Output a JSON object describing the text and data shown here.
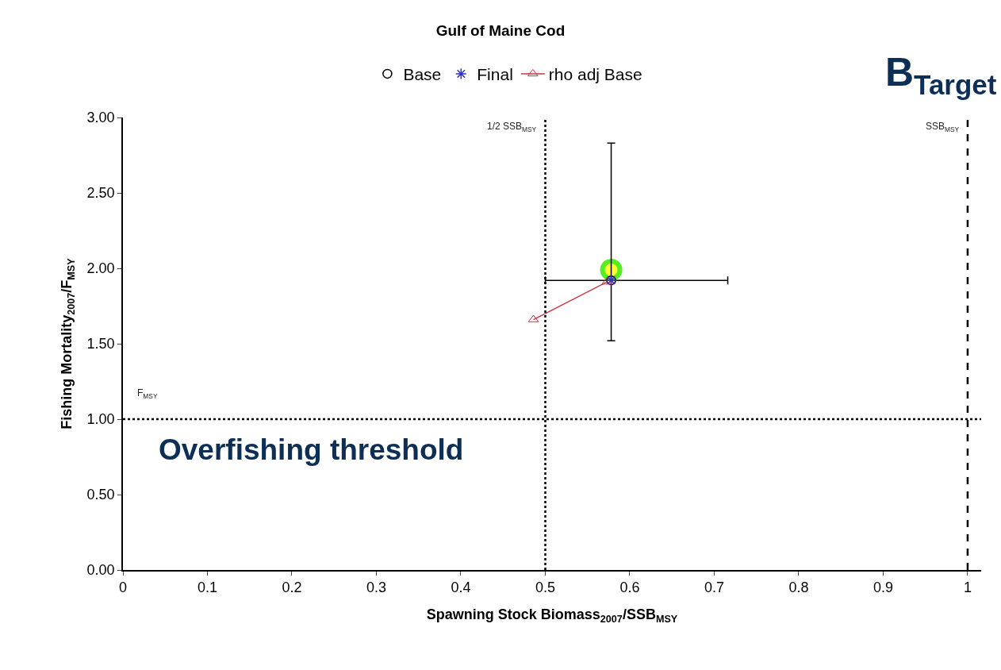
{
  "chart_data": {
    "type": "scatter",
    "title": "Gulf of Maine Cod",
    "xlabel": "Spawning Stock Biomass$_{2007}$/SSB$_{MSY}$",
    "ylabel": "Fishing Mortality$_{2007}$/F$_{MSY}$",
    "series": [
      {
        "name": "Base",
        "color": "#000000",
        "marker": "circle",
        "x": [
          0.578
        ],
        "values": [
          1.92
        ],
        "errors": [
          [
            1.52,
            2.83
          ]
        ],
        "xerrors": [
          [
            0.5,
            0.716
          ]
        ]
      },
      {
        "name": "Final",
        "color": "#3333cc",
        "marker": "cross",
        "x": [
          0.578
        ],
        "values": [
          1.92
        ]
      },
      {
        "name": "rho adj Base",
        "type": "line",
        "color": "#cc3344",
        "marker": "triangle",
        "line_style": "solid",
        "x": [
          0.573,
          0.486
        ],
        "values": [
          1.91,
          1.66
        ]
      },
      {
        "color": "#ffff33",
        "marker": "circle",
        "x": [
          0.578
        ],
        "values": [
          1.99
        ]
      }
    ],
    "xlim": [
      0,
      1.016
    ],
    "xticks": [
      0,
      0.1,
      0.2,
      0.3,
      0.4,
      0.5,
      0.6,
      0.7,
      0.8,
      0.9,
      1
    ],
    "ylim": [
      0,
      3
    ],
    "yticks": [
      {
        "value": 0,
        "label": "0.00"
      },
      {
        "value": 0.5,
        "label": "0.50"
      },
      {
        "value": 1,
        "label": "1.00"
      },
      {
        "value": 1.5,
        "label": "1.50"
      },
      {
        "value": 2,
        "label": "2.00"
      },
      {
        "value": 2.5,
        "label": "2.50"
      },
      {
        "value": 3,
        "label": "3.00"
      }
    ],
    "ref_lines": [
      {
        "axis": "x",
        "value": 0.5,
        "label": "1/2 SSB$_{MSY}$",
        "color": "#000000",
        "line_style": "dotted"
      },
      {
        "axis": "x",
        "value": 1,
        "label": "SSB$_{MSY}$",
        "color": "#000000",
        "line_style": "dashed"
      },
      {
        "axis": "y",
        "value": 1,
        "label": "F$_{MSY}$",
        "color": "#000000",
        "line_style": "dotted"
      }
    ],
    "annotations": [
      "Overfishing threshold",
      "B$_{Target}$"
    ],
    "grid": false,
    "legend": "top"
  }
}
